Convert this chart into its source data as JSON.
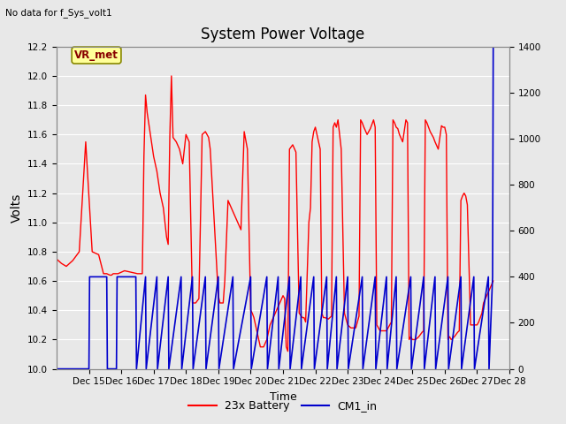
{
  "title": "System Power Voltage",
  "top_left_text": "No data for f_Sys_volt1",
  "xlabel": "Time",
  "ylabel_left": "Volts",
  "ylim_left": [
    10.0,
    12.2
  ],
  "ylim_right": [
    0,
    1400
  ],
  "yticks_left": [
    10.0,
    10.2,
    10.4,
    10.6,
    10.8,
    11.0,
    11.2,
    11.4,
    11.6,
    11.8,
    12.0,
    12.2
  ],
  "yticks_right": [
    0,
    200,
    400,
    600,
    800,
    1000,
    1200,
    1400
  ],
  "background_color": "#e8e8e8",
  "plot_bg_color": "#e8e8e8",
  "grid_color": "#ffffff",
  "annotation_text": "VR_met",
  "annotation_bg": "#ffff99",
  "annotation_border": "#888800",
  "red_line_color": "#ff0000",
  "blue_line_color": "#0000cc",
  "xlim": [
    14.0,
    28.0
  ],
  "xtick_positions": [
    15,
    16,
    17,
    18,
    19,
    20,
    21,
    22,
    23,
    24,
    25,
    26,
    27,
    28
  ],
  "red_x": [
    14.0,
    14.15,
    14.3,
    14.5,
    14.7,
    14.9,
    15.1,
    15.3,
    15.45,
    15.55,
    15.65,
    15.7,
    15.75,
    15.8,
    15.9,
    16.0,
    16.1,
    16.3,
    16.5,
    16.65,
    16.7,
    16.75,
    16.8,
    16.9,
    17.0,
    17.05,
    17.1,
    17.2,
    17.3,
    17.35,
    17.4,
    17.45,
    17.5,
    17.55,
    17.6,
    17.7,
    17.8,
    17.85,
    17.9,
    18.0,
    18.1,
    18.2,
    18.3,
    18.4,
    18.5,
    18.6,
    18.7,
    18.75,
    18.8,
    18.85,
    18.9,
    18.95,
    19.0,
    19.05,
    19.1,
    19.15,
    19.2,
    19.3,
    19.4,
    19.5,
    19.6,
    19.7,
    19.8,
    19.9,
    20.0,
    20.05,
    20.1,
    20.15,
    20.2,
    20.25,
    20.3,
    20.4,
    20.5,
    20.6,
    20.7,
    20.8,
    20.9,
    21.0,
    21.05,
    21.1,
    21.15,
    21.2,
    21.3,
    21.4,
    21.5,
    21.6,
    21.65,
    21.7,
    21.8,
    21.85,
    21.9,
    21.95,
    22.0,
    22.05,
    22.1,
    22.15,
    22.2,
    22.25,
    22.3,
    22.4,
    22.5,
    22.55,
    22.6,
    22.65,
    22.7,
    22.8,
    22.9,
    23.0,
    23.1,
    23.2,
    23.25,
    23.3,
    23.35,
    23.4,
    23.45,
    23.5,
    23.6,
    23.7,
    23.75,
    23.8,
    23.85,
    23.9,
    23.95,
    24.0,
    24.1,
    24.2,
    24.25,
    24.3,
    24.35,
    24.4,
    24.45,
    24.5,
    24.55,
    24.6,
    24.7,
    24.8,
    24.85,
    24.9,
    24.95,
    25.0,
    25.05,
    25.1,
    25.2,
    25.3,
    25.35,
    25.4,
    25.45,
    25.5,
    25.55,
    25.6,
    25.65,
    25.7,
    25.8,
    25.9,
    25.95,
    26.0,
    26.05,
    26.1,
    26.15,
    26.2,
    26.3,
    26.4,
    26.45,
    26.5,
    26.55,
    26.6,
    26.65,
    26.7,
    26.8,
    26.9,
    26.95,
    27.0,
    27.05,
    27.1,
    27.15,
    27.2,
    27.3,
    27.4,
    27.5
  ],
  "red_y": [
    10.75,
    10.72,
    10.7,
    10.74,
    10.8,
    11.55,
    10.8,
    10.78,
    10.65,
    10.65,
    10.64,
    10.64,
    10.65,
    10.65,
    10.65,
    10.66,
    10.67,
    10.66,
    10.65,
    10.65,
    11.45,
    11.87,
    11.75,
    11.6,
    11.45,
    11.4,
    11.35,
    11.2,
    11.1,
    11.0,
    10.9,
    10.85,
    11.58,
    12.0,
    11.58,
    11.55,
    11.5,
    11.45,
    11.4,
    11.6,
    11.55,
    10.45,
    10.45,
    10.48,
    11.6,
    11.62,
    11.58,
    11.5,
    11.3,
    11.1,
    10.9,
    10.7,
    10.5,
    10.45,
    10.45,
    10.45,
    10.6,
    11.15,
    11.1,
    11.05,
    11.0,
    10.95,
    11.62,
    11.5,
    10.4,
    10.38,
    10.35,
    10.3,
    10.25,
    10.2,
    10.15,
    10.15,
    10.2,
    10.3,
    10.35,
    10.4,
    10.45,
    10.5,
    10.48,
    10.15,
    10.12,
    11.5,
    11.53,
    11.48,
    10.38,
    10.35,
    10.35,
    10.32,
    11.0,
    11.1,
    11.55,
    11.62,
    11.65,
    11.6,
    11.55,
    11.5,
    10.38,
    10.35,
    10.35,
    10.34,
    10.36,
    11.65,
    11.68,
    11.65,
    11.7,
    11.5,
    10.38,
    10.3,
    10.28,
    10.28,
    10.28,
    10.32,
    10.36,
    11.7,
    11.68,
    11.65,
    11.6,
    11.64,
    11.67,
    11.7,
    11.65,
    10.3,
    10.28,
    10.26,
    10.26,
    10.26,
    10.28,
    10.3,
    10.32,
    11.7,
    11.68,
    11.65,
    11.64,
    11.6,
    11.55,
    11.7,
    11.68,
    10.2,
    10.22,
    10.2,
    10.2,
    10.2,
    10.22,
    10.25,
    10.26,
    11.7,
    11.68,
    11.65,
    11.62,
    11.6,
    11.58,
    11.55,
    11.5,
    11.66,
    11.65,
    11.65,
    11.6,
    10.2,
    10.22,
    10.2,
    10.22,
    10.25,
    10.26,
    11.15,
    11.18,
    11.2,
    11.18,
    11.12,
    10.3,
    10.3,
    10.3,
    10.3,
    10.32,
    10.35,
    10.38,
    10.45,
    10.5,
    10.55,
    10.6
  ],
  "blue_x": [
    14.0,
    14.02,
    15.0,
    15.02,
    15.55,
    15.57,
    15.85,
    15.87,
    16.45,
    16.47,
    16.75,
    16.77,
    17.1,
    17.12,
    17.45,
    17.47,
    17.85,
    17.87,
    18.2,
    18.22,
    18.6,
    18.62,
    19.0,
    19.02,
    19.45,
    19.47,
    20.0,
    20.02,
    20.5,
    20.52,
    20.85,
    20.87,
    21.2,
    21.22,
    21.55,
    21.57,
    21.95,
    21.97,
    22.35,
    22.37,
    22.65,
    22.67,
    23.0,
    23.02,
    23.45,
    23.47,
    23.85,
    23.87,
    24.2,
    24.22,
    24.5,
    24.52,
    24.95,
    24.97,
    25.35,
    25.37,
    25.7,
    25.72,
    26.1,
    26.12,
    26.5,
    26.52,
    26.9,
    26.92,
    27.35,
    27.37,
    27.48,
    27.5
  ],
  "blue_y": [
    0,
    0,
    0,
    400,
    400,
    0,
    0,
    400,
    400,
    0,
    400,
    0,
    400,
    0,
    400,
    0,
    400,
    0,
    400,
    0,
    400,
    0,
    400,
    0,
    400,
    0,
    400,
    0,
    400,
    0,
    400,
    0,
    400,
    0,
    400,
    0,
    400,
    0,
    400,
    0,
    400,
    0,
    400,
    0,
    400,
    0,
    400,
    0,
    400,
    0,
    400,
    0,
    400,
    0,
    400,
    0,
    400,
    0,
    400,
    0,
    400,
    0,
    400,
    0,
    400,
    0,
    400,
    1400
  ]
}
